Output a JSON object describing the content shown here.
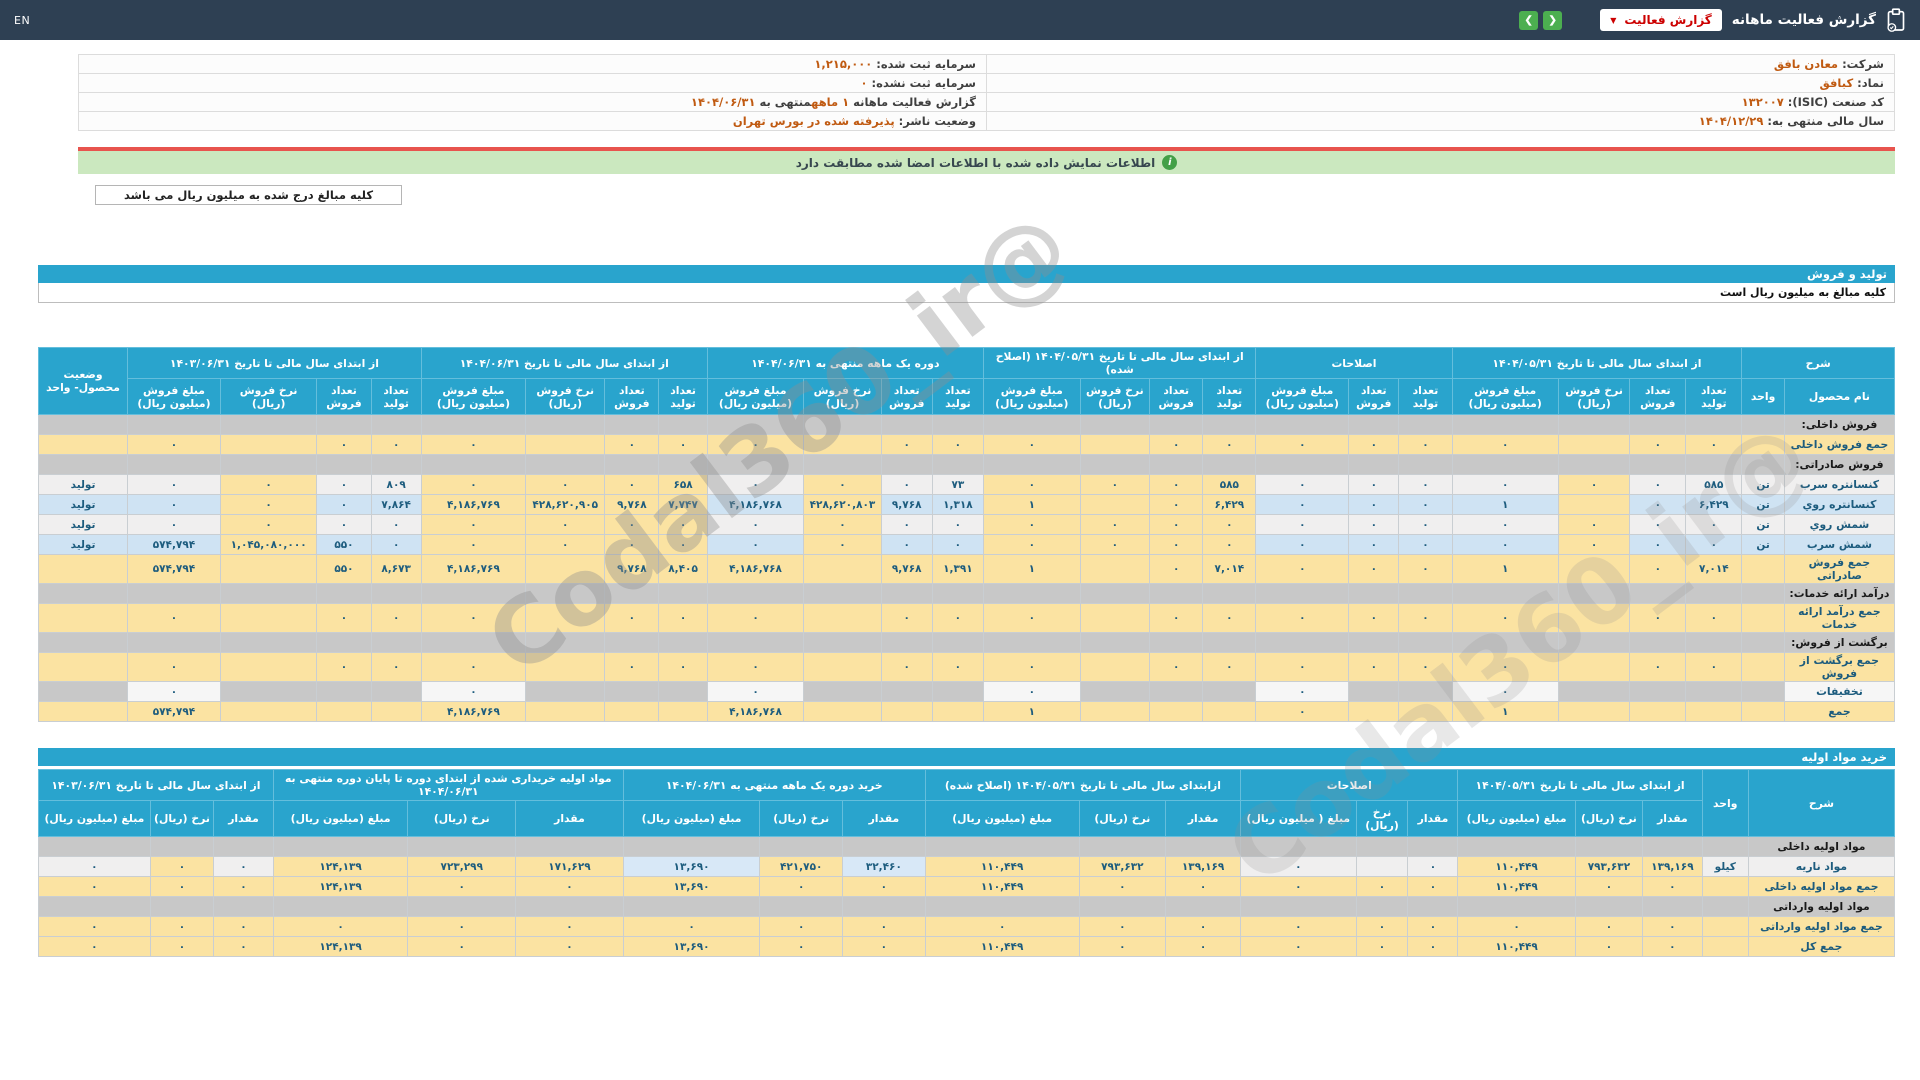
{
  "header": {
    "title": "گزارش فعالیت ماهانه",
    "dropdown_label": "گزارش فعالیت",
    "dropdown_caret": "▼",
    "nav": {
      "left_glyph": "❮",
      "right_glyph": "❯"
    },
    "en_label": "EN"
  },
  "company_info": {
    "rows": [
      {
        "right": {
          "parts": [
            {
              "t": "شرکت: ",
              "a": false
            },
            {
              "t": "معادن بافق",
              "a": true
            }
          ]
        },
        "left": {
          "parts": [
            {
              "t": "سرمایه ثبت شده: ",
              "a": false
            },
            {
              "t": "۱,۲۱۵,۰۰۰",
              "a": true
            }
          ]
        }
      },
      {
        "right": {
          "parts": [
            {
              "t": "نماد: ",
              "a": false
            },
            {
              "t": "کبافق",
              "a": true
            }
          ]
        },
        "left": {
          "parts": [
            {
              "t": "سرمایه ثبت نشده: ",
              "a": false
            },
            {
              "t": "۰",
              "a": true
            }
          ]
        }
      },
      {
        "right": {
          "parts": [
            {
              "t": "کد صنعت (ISIC): ",
              "a": false
            },
            {
              "t": "۱۳۲۰۰۷",
              "a": true
            }
          ]
        },
        "left": {
          "parts": [
            {
              "t": "گزارش فعالیت ماهانه ",
              "a": false
            },
            {
              "t": "۱ ماهه",
              "a": true
            },
            {
              "t": "منتهی به ",
              "a": false
            },
            {
              "t": "۱۴۰۴/۰۶/۳۱",
              "a": true
            }
          ]
        }
      },
      {
        "right": {
          "parts": [
            {
              "t": "سال مالی منتهی به: ",
              "a": false
            },
            {
              "t": "۱۴۰۴/۱۲/۲۹",
              "a": true
            }
          ]
        },
        "left": {
          "parts": [
            {
              "t": "وضعیت ناشر: ",
              "a": false
            },
            {
              "t": "پذیرفته شده در بورس تهران",
              "a": true
            }
          ]
        }
      }
    ]
  },
  "banner": {
    "text": "اطلاعات نمایش داده شده با اطلاعات امضا شده مطابقت دارد",
    "icon_glyph": "i"
  },
  "note_box": "کلیه مبالغ درج شده به میلیون ریال می باشد",
  "watermark": "@Codal360_ir",
  "sales": {
    "bar": "تولید و فروش",
    "subtitle": "کلیه مبالغ به میلیون ریال است",
    "head": {
      "sherh": "شرح",
      "name_sub": "نام محصول",
      "unit": "واحد",
      "status": "وضعیت محصول- واحد",
      "cols4": [
        "تعداد تولید",
        "تعداد فروش",
        "نرخ فروش (ریال)",
        "مبلغ فروش (میلیون ریال)"
      ],
      "cols_amend": [
        "تعداد تولید",
        "تعداد فروش",
        "مبلغ فروش (میلیون ریال)"
      ],
      "groups": [
        {
          "title": "از ابتدای سال مالی تا تاریخ ۱۴۰۴/۰۵/۳۱",
          "n": 4
        },
        {
          "title": "اصلاحات",
          "n": 3
        },
        {
          "title": "از ابتدای سال مالی تا تاریخ ۱۴۰۴/۰۵/۳۱ (اصلاح شده)",
          "n": 4
        },
        {
          "title": "دوره یک ماهه منتهی به ۱۴۰۴/۰۶/۳۱",
          "n": 4
        },
        {
          "title": "از ابتدای سال مالی تا تاریخ ۱۴۰۴/۰۶/۳۱",
          "n": 4
        },
        {
          "title": "از ابتدای سال مالی تا تاریخ ۱۴۰۳/۰۶/۳۱",
          "n": 4
        }
      ]
    },
    "rows": [
      {
        "type": "section",
        "label": "فروش داخلی:"
      },
      {
        "type": "total",
        "label": "جمع فروش داخلی",
        "unit": "",
        "status": "",
        "cells": [
          "۰",
          "۰",
          "",
          "۰",
          "۰",
          "۰",
          "۰",
          "۰",
          "۰",
          "",
          "۰",
          "۰",
          "۰",
          "",
          "۰",
          "۰",
          "۰",
          "",
          "۰",
          "۰",
          "۰",
          "",
          "۰"
        ]
      },
      {
        "type": "section",
        "label": "فروش صادراتی:"
      },
      {
        "type": "data",
        "label": "کنسانتره سرب",
        "unit": "تن",
        "status": "تولید",
        "cells": [
          "۵۸۵",
          "۰",
          "۰",
          "۰",
          "۰",
          "۰",
          "۰",
          "۵۸۵",
          "۰",
          "۰",
          "۰",
          "۷۳",
          "۰",
          "۰",
          "۰",
          "۶۵۸",
          "۰",
          "۰",
          "۰",
          "۸۰۹",
          "۰",
          "۰",
          "۰"
        ]
      },
      {
        "type": "data",
        "label": "کنسانتره روي",
        "unit": "تن",
        "status": "تولید",
        "cells": [
          "۶,۴۲۹",
          "۰",
          "",
          "۱",
          "۰",
          "۰",
          "۰",
          "۶,۴۲۹",
          "۰",
          "",
          "۱",
          "۱,۳۱۸",
          "۹,۷۶۸",
          "۴۲۸,۶۲۰,۸۰۳",
          "۴,۱۸۶,۷۶۸",
          "۷,۷۴۷",
          "۹,۷۶۸",
          "۴۲۸,۶۲۰,۹۰۵",
          "۴,۱۸۶,۷۶۹",
          "۷,۸۶۴",
          "۰",
          "۰",
          "۰"
        ]
      },
      {
        "type": "data",
        "label": "شمش روي",
        "unit": "تن",
        "status": "تولید",
        "cells": [
          "۰",
          "۰",
          "۰",
          "۰",
          "۰",
          "۰",
          "۰",
          "۰",
          "۰",
          "۰",
          "۰",
          "۰",
          "۰",
          "۰",
          "۰",
          "۰",
          "۰",
          "۰",
          "۰",
          "۰",
          "۰",
          "۰",
          "۰"
        ]
      },
      {
        "type": "data",
        "label": "شمش سرب",
        "unit": "تن",
        "status": "تولید",
        "cells": [
          "۰",
          "۰",
          "۰",
          "۰",
          "۰",
          "۰",
          "۰",
          "۰",
          "۰",
          "۰",
          "۰",
          "۰",
          "۰",
          "۰",
          "۰",
          "۰",
          "۰",
          "۰",
          "۰",
          "۰",
          "۵۵۰",
          "۱,۰۴۵,۰۸۰,۰۰۰",
          "۵۷۴,۷۹۴"
        ]
      },
      {
        "type": "total",
        "label": "جمع فروش صادراتی",
        "unit": "",
        "status": "",
        "cells": [
          "۷,۰۱۴",
          "۰",
          "",
          "۱",
          "۰",
          "۰",
          "۰",
          "۷,۰۱۴",
          "۰",
          "",
          "۱",
          "۱,۳۹۱",
          "۹,۷۶۸",
          "",
          "۴,۱۸۶,۷۶۸",
          "۸,۴۰۵",
          "۹,۷۶۸",
          "",
          "۴,۱۸۶,۷۶۹",
          "۸,۶۷۳",
          "۵۵۰",
          "",
          "۵۷۴,۷۹۴"
        ]
      },
      {
        "type": "section",
        "label": "درآمد ارائه خدمات:"
      },
      {
        "type": "total",
        "label": "جمع درآمد ارائه خدمات",
        "unit": "",
        "status": "",
        "cells": [
          "۰",
          "۰",
          "",
          "۰",
          "۰",
          "۰",
          "۰",
          "۰",
          "۰",
          "",
          "۰",
          "۰",
          "۰",
          "",
          "۰",
          "۰",
          "۰",
          "",
          "۰",
          "۰",
          "۰",
          "",
          "۰"
        ]
      },
      {
        "type": "section",
        "label": "برگشت از فروش:"
      },
      {
        "type": "total",
        "label": "جمع برگشت از فروش",
        "unit": "",
        "status": "",
        "cells": [
          "۰",
          "۰",
          "",
          "۰",
          "۰",
          "۰",
          "۰",
          "۰",
          "۰",
          "",
          "۰",
          "۰",
          "۰",
          "",
          "۰",
          "۰",
          "۰",
          "",
          "۰",
          "۰",
          "۰",
          "",
          "۰"
        ]
      },
      {
        "type": "discount",
        "label": "تخفیفات",
        "unit": "",
        "status": "",
        "cells": [
          "",
          "",
          "",
          "۰",
          "",
          "",
          "۰",
          "",
          "",
          "",
          "۰",
          "",
          "",
          "",
          "۰",
          "",
          "",
          "",
          "۰",
          "",
          "",
          "",
          "۰"
        ]
      },
      {
        "type": "total",
        "label": "جمع",
        "unit": "",
        "status": "",
        "cells": [
          "",
          "",
          "",
          "۱",
          "",
          "",
          "۰",
          "",
          "",
          "",
          "۱",
          "",
          "",
          "",
          "۴,۱۸۶,۷۶۸",
          "",
          "",
          "",
          "۴,۱۸۶,۷۶۹",
          "",
          "",
          "",
          "۵۷۴,۷۹۴"
        ]
      }
    ]
  },
  "materials": {
    "bar": "خرید مواد اولیه",
    "head": {
      "sherh": "شرح",
      "unit": "واحد",
      "cols3": [
        "مقدار",
        "نرخ (ریال)",
        "مبلغ (میلیون ریال)"
      ],
      "cols3_amend": [
        "مقدار",
        "نرخ (ریال)",
        "مبلغ ( میلیون ریال)"
      ],
      "groups": [
        {
          "title": "از ابتدای سال مالی تا تاریخ ۱۴۰۴/۰۵/۳۱",
          "n": 3
        },
        {
          "title": "اصلاحات",
          "n": 3
        },
        {
          "title": "ازابتدای سال مالی تا تاریخ ۱۴۰۴/۰۵/۳۱ (اصلاح شده)",
          "n": 3
        },
        {
          "title": "خرید دوره یک ماهه منتهی به ۱۴۰۴/۰۶/۳۱",
          "n": 3
        },
        {
          "title": "مواد اولیه خریداری شده از ابتدای دوره تا پایان دوره منتهی به ۱۴۰۴/۰۶/۳۱",
          "n": 3
        },
        {
          "title": "از ابتدای سال مالی تا تاریخ ۱۴۰۳/۰۶/۳۱",
          "n": 3
        }
      ]
    },
    "rows": [
      {
        "type": "section",
        "label": "مواد اولیه داخلی"
      },
      {
        "type": "data",
        "label": "مواد ناریه",
        "unit": "کیلو",
        "cells": [
          "۱۳۹,۱۶۹",
          "۷۹۳,۶۳۲",
          "۱۱۰,۴۴۹",
          "۰",
          "",
          "۰",
          "۱۳۹,۱۶۹",
          "۷۹۳,۶۳۲",
          "۱۱۰,۴۴۹",
          "۳۲,۴۶۰",
          "۴۲۱,۷۵۰",
          "۱۳,۶۹۰",
          "۱۷۱,۶۲۹",
          "۷۲۳,۲۹۹",
          "۱۲۴,۱۳۹",
          "۰",
          "۰",
          "۰"
        ]
      },
      {
        "type": "total",
        "label": "جمع مواد اولیه داخلی",
        "unit": "",
        "cells": [
          "۰",
          "۰",
          "۱۱۰,۴۴۹",
          "۰",
          "۰",
          "۰",
          "۰",
          "۰",
          "۱۱۰,۴۴۹",
          "۰",
          "۰",
          "۱۳,۶۹۰",
          "۰",
          "۰",
          "۱۲۴,۱۳۹",
          "۰",
          "۰",
          "۰"
        ]
      },
      {
        "type": "section",
        "label": "مواد اولیه وارداتی"
      },
      {
        "type": "total",
        "label": "جمع مواد اولیه وارداتی",
        "unit": "",
        "cells": [
          "۰",
          "۰",
          "۰",
          "۰",
          "۰",
          "۰",
          "۰",
          "۰",
          "۰",
          "۰",
          "۰",
          "۰",
          "۰",
          "۰",
          "۰",
          "۰",
          "۰",
          "۰"
        ]
      },
      {
        "type": "total",
        "label": "جمع کل",
        "unit": "",
        "cells": [
          "۰",
          "۰",
          "۱۱۰,۴۴۹",
          "۰",
          "۰",
          "۰",
          "۰",
          "۰",
          "۱۱۰,۴۴۹",
          "۰",
          "۰",
          "۱۳,۶۹۰",
          "۰",
          "۰",
          "۱۲۴,۱۳۹",
          "۰",
          "۰",
          "۰"
        ]
      }
    ]
  }
}
